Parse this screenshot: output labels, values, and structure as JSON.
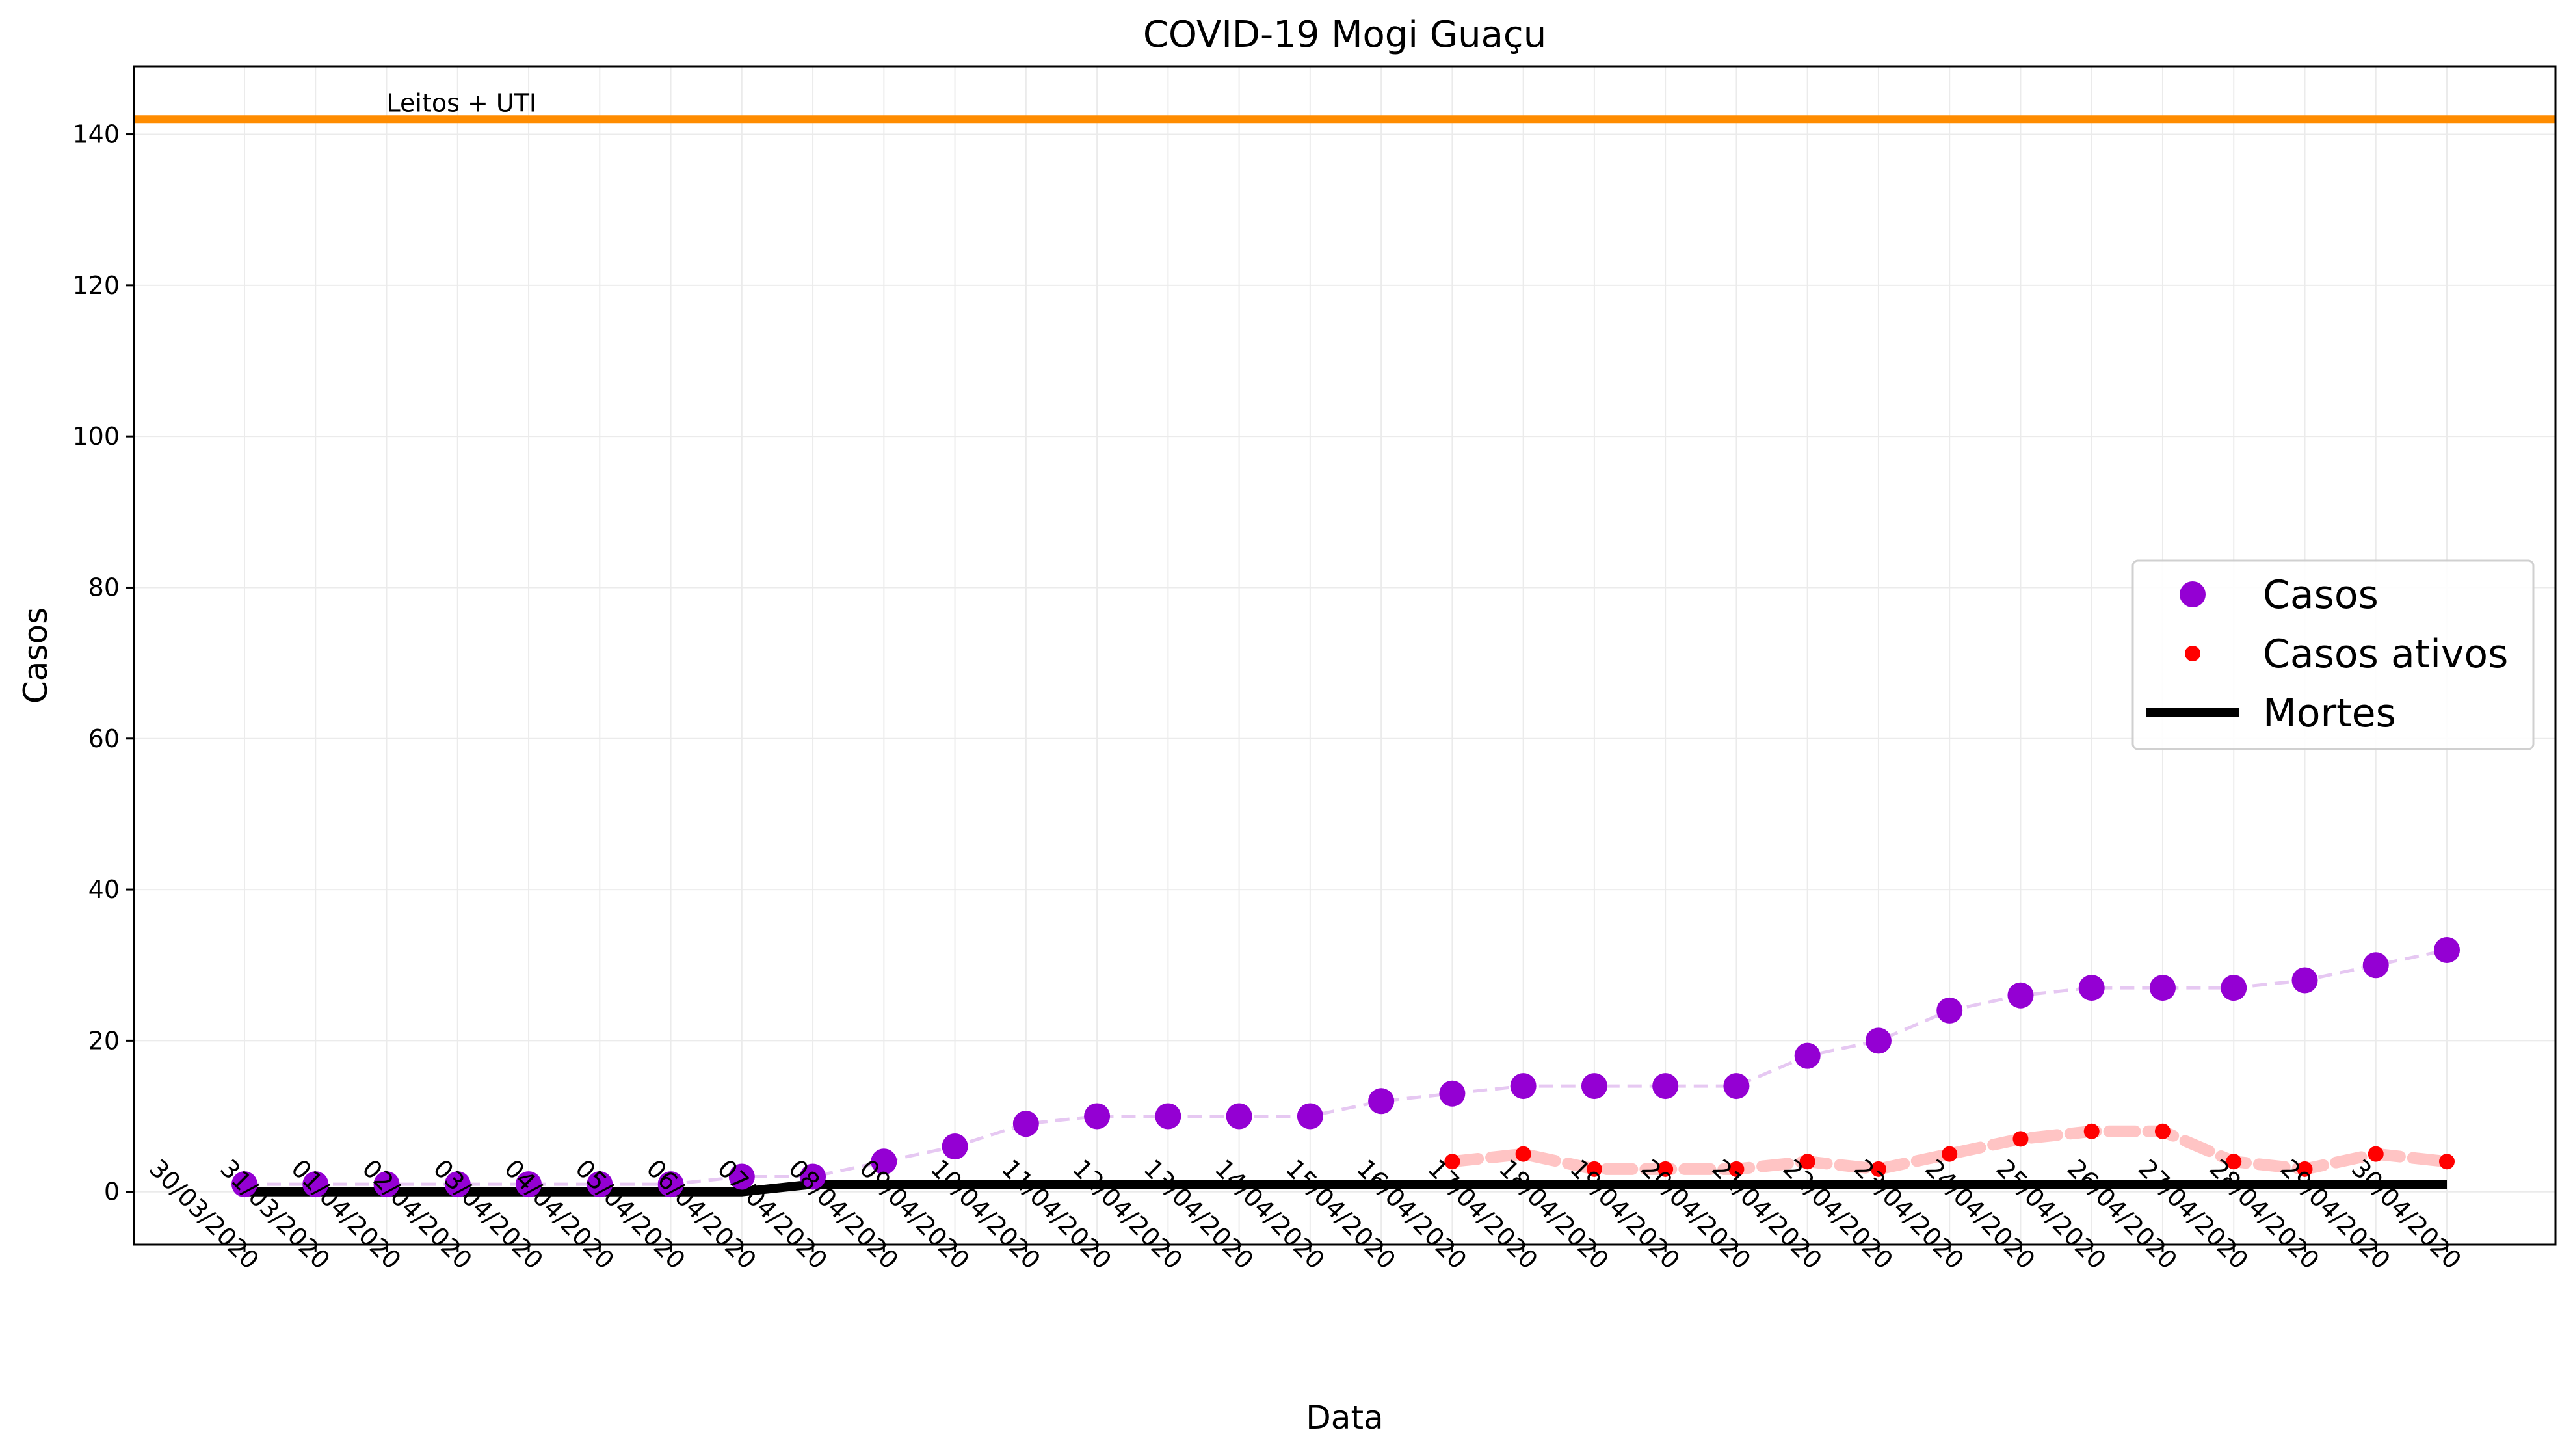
{
  "chart_data": {
    "type": "line",
    "title": "COVID-19 Mogi Guaçu",
    "xlabel": "Data",
    "ylabel": "Casos",
    "ylim": [
      -7,
      149
    ],
    "yticks": [
      0,
      20,
      40,
      60,
      80,
      100,
      120,
      140
    ],
    "grid": true,
    "legend_position": "center-right",
    "categories": [
      "30/03/2020",
      "31/03/2020",
      "01/04/2020",
      "02/04/2020",
      "03/04/2020",
      "04/04/2020",
      "05/04/2020",
      "06/04/2020",
      "07/04/2020",
      "08/04/2020",
      "09/04/2020",
      "10/04/2020",
      "11/04/2020",
      "12/04/2020",
      "13/04/2020",
      "14/04/2020",
      "15/04/2020",
      "16/04/2020",
      "17/04/2020",
      "18/04/2020",
      "19/04/2020",
      "20/04/2020",
      "21/04/2020",
      "22/04/2020",
      "23/04/2020",
      "24/04/2020",
      "25/04/2020",
      "26/04/2020",
      "27/04/2020",
      "28/04/2020",
      "29/04/2020",
      "30/04/2020"
    ],
    "series": [
      {
        "name": "Casos",
        "color": "#9400D3",
        "line_color": "#E6C8F2",
        "values": [
          1,
          1,
          1,
          1,
          1,
          1,
          1,
          2,
          2,
          4,
          6,
          9,
          10,
          10,
          10,
          10,
          12,
          13,
          14,
          14,
          14,
          14,
          18,
          20,
          24,
          26,
          27,
          27,
          27,
          28,
          30,
          32
        ]
      },
      {
        "name": "Casos ativos",
        "color": "#FF0000",
        "line_color": "#FFC4C4",
        "values": [
          null,
          null,
          null,
          null,
          null,
          null,
          null,
          null,
          null,
          null,
          null,
          null,
          null,
          null,
          null,
          null,
          null,
          4,
          5,
          3,
          3,
          3,
          4,
          3,
          5,
          7,
          8,
          8,
          4,
          3,
          5,
          4
        ]
      },
      {
        "name": "Mortes",
        "color": "#000000",
        "values": [
          0,
          0,
          0,
          0,
          0,
          0,
          0,
          0,
          1,
          1,
          1,
          1,
          1,
          1,
          1,
          1,
          1,
          1,
          1,
          1,
          1,
          1,
          1,
          1,
          1,
          1,
          1,
          1,
          1,
          1,
          1,
          1
        ]
      }
    ],
    "reference_line": {
      "label": "Leitos + UTI",
      "value": 142,
      "color": "#FF8C00"
    }
  }
}
